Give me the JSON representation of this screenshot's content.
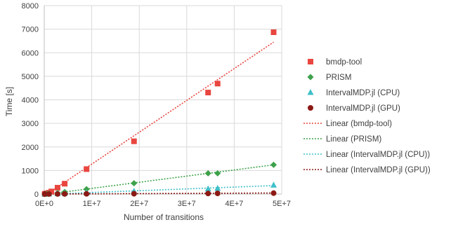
{
  "chart_data": {
    "type": "scatter",
    "xlabel": "Number of transitions",
    "ylabel": "Time [s]",
    "xlim": [
      0,
      50000000
    ],
    "ylim": [
      0,
      8000
    ],
    "x_ticks": [
      {
        "value": 0,
        "label": "0E+0"
      },
      {
        "value": 10000000,
        "label": "1E+7"
      },
      {
        "value": 20000000,
        "label": "2E+7"
      },
      {
        "value": 30000000,
        "label": "3E+7"
      },
      {
        "value": 40000000,
        "label": "4E+7"
      },
      {
        "value": 50000000,
        "label": "5E+7"
      }
    ],
    "y_ticks": [
      {
        "value": 0,
        "label": "0"
      },
      {
        "value": 1000,
        "label": "1000"
      },
      {
        "value": 2000,
        "label": "2000"
      },
      {
        "value": 3000,
        "label": "3000"
      },
      {
        "value": 4000,
        "label": "4000"
      },
      {
        "value": 5000,
        "label": "5000"
      },
      {
        "value": 6000,
        "label": "6000"
      },
      {
        "value": 7000,
        "label": "7000"
      },
      {
        "value": 8000,
        "label": "8000"
      }
    ],
    "grid": true,
    "legend_position": "right",
    "series": [
      {
        "name": "bmdp-tool",
        "marker": "square",
        "color": "#E8463F",
        "points": [
          {
            "x": 100000,
            "y": 5
          },
          {
            "x": 300000,
            "y": 15
          },
          {
            "x": 500000,
            "y": 30
          },
          {
            "x": 1000000,
            "y": 60
          },
          {
            "x": 1500000,
            "y": 110
          },
          {
            "x": 2800000,
            "y": 270
          },
          {
            "x": 4300000,
            "y": 440
          },
          {
            "x": 8900000,
            "y": 1060
          },
          {
            "x": 18900000,
            "y": 2240
          },
          {
            "x": 34500000,
            "y": 4310
          },
          {
            "x": 36500000,
            "y": 4690
          },
          {
            "x": 48300000,
            "y": 6870
          }
        ]
      },
      {
        "name": "PRISM",
        "marker": "diamond",
        "color": "#3DA14A",
        "points": [
          {
            "x": 100000,
            "y": 2
          },
          {
            "x": 500000,
            "y": 8
          },
          {
            "x": 1000000,
            "y": 20
          },
          {
            "x": 2800000,
            "y": 50
          },
          {
            "x": 4300000,
            "y": 90
          },
          {
            "x": 8900000,
            "y": 210
          },
          {
            "x": 18900000,
            "y": 460
          },
          {
            "x": 34500000,
            "y": 880
          },
          {
            "x": 36500000,
            "y": 880
          },
          {
            "x": 48300000,
            "y": 1240
          }
        ]
      },
      {
        "name": "IntervalMDP.jl (CPU)",
        "marker": "triangle",
        "color": "#3FBFC9",
        "points": [
          {
            "x": 100000,
            "y": 1
          },
          {
            "x": 1000000,
            "y": 5
          },
          {
            "x": 2800000,
            "y": 15
          },
          {
            "x": 4300000,
            "y": 25
          },
          {
            "x": 8900000,
            "y": 55
          },
          {
            "x": 18900000,
            "y": 120
          },
          {
            "x": 34500000,
            "y": 220
          },
          {
            "x": 36500000,
            "y": 240
          },
          {
            "x": 48300000,
            "y": 380
          }
        ]
      },
      {
        "name": "IntervalMDP.jl (GPU)",
        "marker": "circle",
        "color": "#8B1A14",
        "points": [
          {
            "x": 100000,
            "y": 2
          },
          {
            "x": 1000000,
            "y": 3
          },
          {
            "x": 2800000,
            "y": 5
          },
          {
            "x": 4300000,
            "y": 6
          },
          {
            "x": 8900000,
            "y": 10
          },
          {
            "x": 18900000,
            "y": 15
          },
          {
            "x": 34500000,
            "y": 25
          },
          {
            "x": 36500000,
            "y": 30
          },
          {
            "x": 48300000,
            "y": 40
          }
        ]
      }
    ],
    "trendlines": [
      {
        "name": "Linear (bmdp-tool)",
        "color": "#E8463F",
        "from": {
          "x": 0,
          "y": -80
        },
        "to": {
          "x": 48300000,
          "y": 6450
        }
      },
      {
        "name": "Linear (PRISM)",
        "color": "#3DA14A",
        "from": {
          "x": 0,
          "y": -20
        },
        "to": {
          "x": 48300000,
          "y": 1240
        }
      },
      {
        "name": "Linear (IntervalMDP.jl (CPU))",
        "color": "#3FBFC9",
        "from": {
          "x": 0,
          "y": -10
        },
        "to": {
          "x": 48300000,
          "y": 360
        }
      },
      {
        "name": "Linear (IntervalMDP.jl (GPU))",
        "color": "#8B1A14",
        "from": {
          "x": 0,
          "y": 0
        },
        "to": {
          "x": 48300000,
          "y": 45
        }
      }
    ]
  }
}
